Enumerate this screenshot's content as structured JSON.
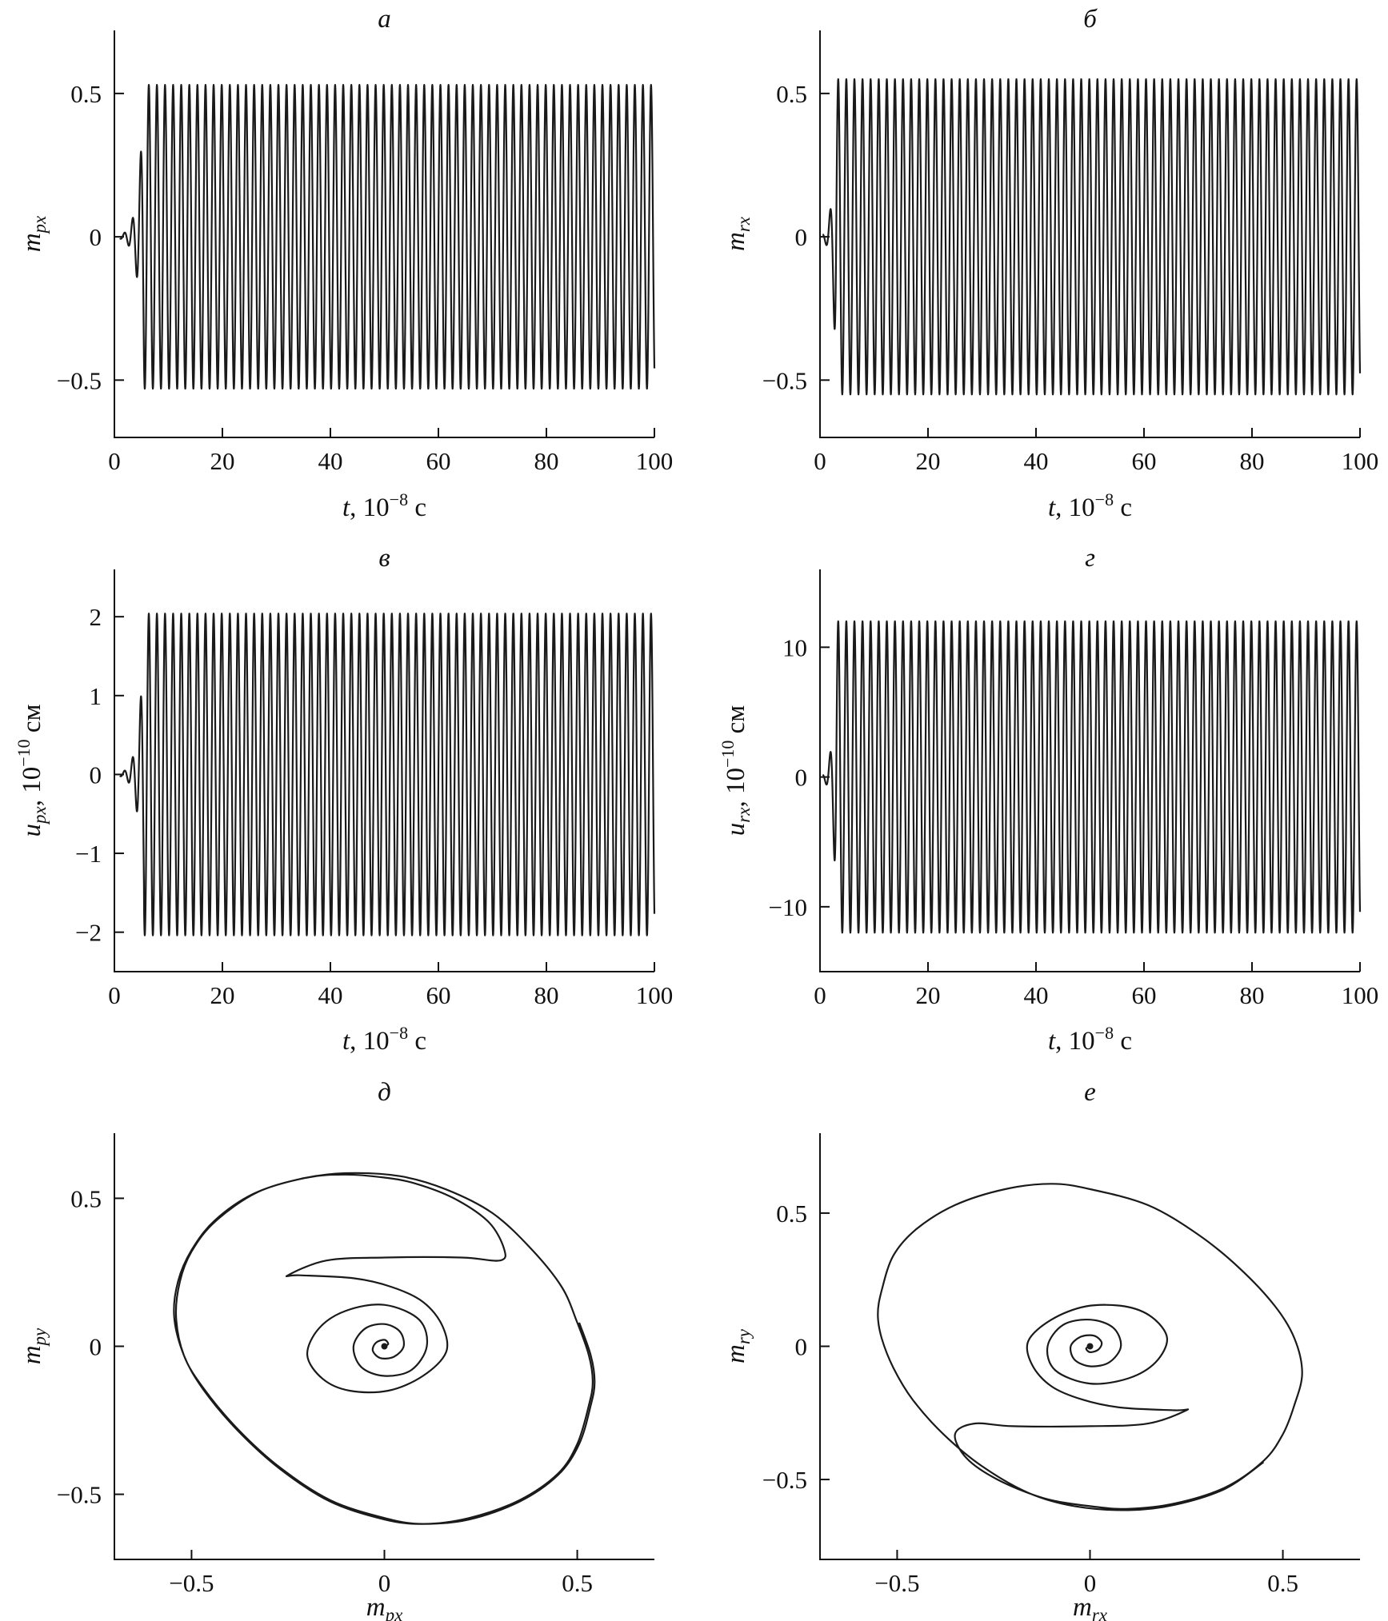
{
  "chart_data": [
    {
      "panel": "а",
      "type": "line",
      "title": "а",
      "xlabel_main": "t",
      "xlabel_rest": ", 10",
      "xlabel_exp": "−8",
      "xlabel_unit": " с",
      "ylabel_main": "m",
      "ylabel_sub": "px",
      "ylabel_rest": "",
      "ylabel_exp": "",
      "ylabel_unit": "",
      "xlim": [
        0,
        100
      ],
      "ylim": [
        -0.7,
        0.72
      ],
      "xticks": [
        0,
        20,
        40,
        60,
        80,
        100
      ],
      "xtick_labels": [
        "0",
        "20",
        "40",
        "60",
        "80",
        "100"
      ],
      "yticks": [
        0.5,
        0,
        -0.5
      ],
      "ytick_labels": [
        "0.5",
        "0",
        "−0.5"
      ],
      "series": [
        {
          "kind": "oscillation",
          "amplitude": 0.53,
          "period": 1.5,
          "onset": 5.5,
          "initial_amplitude": 0.006,
          "growth_rate": 1.0,
          "x_start": 1.0,
          "x_end": 100
        }
      ]
    },
    {
      "panel": "б",
      "type": "line",
      "title": "б",
      "xlabel_main": "t",
      "xlabel_rest": ", 10",
      "xlabel_exp": "−8",
      "xlabel_unit": " с",
      "ylabel_main": "m",
      "ylabel_sub": "rx",
      "ylabel_rest": "",
      "ylabel_exp": "",
      "ylabel_unit": "",
      "xlim": [
        0,
        100
      ],
      "ylim": [
        -0.7,
        0.72
      ],
      "xticks": [
        0,
        20,
        40,
        60,
        80,
        100
      ],
      "xtick_labels": [
        "0",
        "20",
        "40",
        "60",
        "80",
        "100"
      ],
      "yticks": [
        0.5,
        0,
        -0.5
      ],
      "ytick_labels": [
        "0.5",
        "0",
        "−0.5"
      ],
      "series": [
        {
          "kind": "oscillation",
          "amplitude": 0.55,
          "period": 1.5,
          "onset": 3.5,
          "initial_amplitude": 0.01,
          "growth_rate": 1.6,
          "x_start": 0.5,
          "x_end": 100
        }
      ]
    },
    {
      "panel": "в",
      "type": "line",
      "title": "в",
      "xlabel_main": "t",
      "xlabel_rest": ", 10",
      "xlabel_exp": "−8",
      "xlabel_unit": " с",
      "ylabel_main": "u",
      "ylabel_sub": "px",
      "ylabel_rest": ", 10",
      "ylabel_exp": "−10",
      "ylabel_unit": " см",
      "xlim": [
        0,
        100
      ],
      "ylim": [
        -2.5,
        2.6
      ],
      "xticks": [
        0,
        20,
        40,
        60,
        80,
        100
      ],
      "xtick_labels": [
        "0",
        "20",
        "40",
        "60",
        "80",
        "100"
      ],
      "yticks": [
        2,
        1,
        0,
        -1,
        -2
      ],
      "ytick_labels": [
        "2",
        "1",
        "0",
        "−1",
        "−2"
      ],
      "series": [
        {
          "kind": "oscillation",
          "amplitude": 2.04,
          "period": 1.5,
          "onset": 5.5,
          "initial_amplitude": 0.02,
          "growth_rate": 1.0,
          "x_start": 1.0,
          "x_end": 100
        }
      ]
    },
    {
      "panel": "г",
      "type": "line",
      "title": "г",
      "xlabel_main": "t",
      "xlabel_rest": ", 10",
      "xlabel_exp": "−8",
      "xlabel_unit": " с",
      "ylabel_main": "u",
      "ylabel_sub": "rx",
      "ylabel_rest": ", 10",
      "ylabel_exp": "−10",
      "ylabel_unit": " см",
      "xlim": [
        0,
        100
      ],
      "ylim": [
        -15,
        16
      ],
      "xticks": [
        0,
        20,
        40,
        60,
        80,
        100
      ],
      "xtick_labels": [
        "0",
        "20",
        "40",
        "60",
        "80",
        "100"
      ],
      "yticks": [
        10,
        0,
        -10
      ],
      "ytick_labels": [
        "10",
        "0",
        "−10"
      ],
      "series": [
        {
          "kind": "oscillation",
          "amplitude": 12,
          "period": 1.5,
          "onset": 3.5,
          "initial_amplitude": 0.2,
          "growth_rate": 1.6,
          "x_start": 0.5,
          "x_end": 100
        }
      ]
    },
    {
      "panel": "д",
      "type": "line",
      "title": "д",
      "xlabel_main": "m",
      "xlabel_sub": "px",
      "ylabel_main": "m",
      "ylabel_sub": "py",
      "ylabel_rest": "",
      "ylabel_exp": "",
      "ylabel_unit": "",
      "xlim": [
        -0.7,
        0.7
      ],
      "ylim": [
        -0.72,
        0.72
      ],
      "xticks": [
        -0.5,
        0,
        0.5
      ],
      "xtick_labels": [
        "−0.5",
        "0",
        "0.5"
      ],
      "yticks": [
        0.5,
        0,
        -0.5
      ],
      "ytick_labels": [
        "0.5",
        "0",
        "−0.5"
      ],
      "series": [
        {
          "name": "phase trajectory",
          "points": [
            [
              0,
              0
            ],
            [
              0.01,
              0.008
            ],
            [
              0.0,
              0.022
            ],
            [
              -0.022,
              0.012
            ],
            [
              -0.03,
              -0.015
            ],
            [
              -0.01,
              -0.04
            ],
            [
              0.025,
              -0.035
            ],
            [
              0.05,
              0.0
            ],
            [
              0.04,
              0.05
            ],
            [
              0.0,
              0.075
            ],
            [
              -0.05,
              0.06
            ],
            [
              -0.08,
              0.0
            ],
            [
              -0.06,
              -0.07
            ],
            [
              0.0,
              -0.1
            ],
            [
              0.07,
              -0.08
            ],
            [
              0.11,
              0.0
            ],
            [
              0.09,
              0.09
            ],
            [
              0.0,
              0.14
            ],
            [
              -0.1,
              0.12
            ],
            [
              -0.17,
              0.06
            ],
            [
              -0.2,
              -0.03
            ],
            [
              -0.16,
              -0.11
            ],
            [
              -0.09,
              -0.15
            ],
            [
              0.01,
              -0.15
            ],
            [
              0.1,
              -0.1
            ],
            [
              0.16,
              -0.02
            ],
            [
              0.15,
              0.07
            ],
            [
              0.1,
              0.15
            ],
            [
              0.02,
              0.2
            ],
            [
              -0.08,
              0.23
            ],
            [
              -0.22,
              0.24
            ],
            [
              -0.25,
              0.24
            ],
            [
              -0.15,
              0.29
            ],
            [
              0.0,
              0.3
            ],
            [
              0.2,
              0.3
            ],
            [
              0.3,
              0.29
            ],
            [
              0.31,
              0.33
            ],
            [
              0.27,
              0.42
            ],
            [
              0.18,
              0.5
            ],
            [
              0.08,
              0.55
            ],
            [
              0.0,
              0.57
            ],
            [
              -0.1,
              0.58
            ],
            [
              -0.2,
              0.57
            ],
            [
              -0.33,
              0.52
            ],
            [
              -0.44,
              0.42
            ],
            [
              -0.5,
              0.32
            ],
            [
              -0.53,
              0.22
            ],
            [
              -0.54,
              0.1
            ],
            [
              -0.52,
              -0.03
            ],
            [
              -0.47,
              -0.14
            ],
            [
              -0.38,
              -0.28
            ],
            [
              -0.27,
              -0.41
            ],
            [
              -0.14,
              -0.52
            ],
            [
              0.0,
              -0.58
            ],
            [
              0.1,
              -0.6
            ],
            [
              0.22,
              -0.58
            ],
            [
              0.35,
              -0.52
            ],
            [
              0.45,
              -0.43
            ],
            [
              0.5,
              -0.33
            ],
            [
              0.53,
              -0.2
            ],
            [
              0.54,
              -0.12
            ],
            [
              0.53,
              -0.03
            ],
            [
              0.5,
              0.08
            ],
            [
              0.46,
              0.2
            ],
            [
              0.38,
              0.33
            ],
            [
              0.28,
              0.45
            ],
            [
              0.16,
              0.53
            ],
            [
              0.04,
              0.575
            ],
            [
              -0.1,
              0.585
            ],
            [
              -0.22,
              0.565
            ],
            [
              -0.34,
              0.515
            ],
            [
              -0.44,
              0.425
            ],
            [
              -0.5,
              0.325
            ],
            [
              -0.535,
              0.22
            ],
            [
              -0.545,
              0.1
            ],
            [
              -0.52,
              -0.03
            ],
            [
              -0.47,
              -0.145
            ],
            [
              -0.38,
              -0.285
            ],
            [
              -0.27,
              -0.415
            ],
            [
              -0.14,
              -0.525
            ],
            [
              0.0,
              -0.585
            ],
            [
              0.1,
              -0.6
            ],
            [
              0.22,
              -0.585
            ],
            [
              0.35,
              -0.525
            ],
            [
              0.45,
              -0.435
            ],
            [
              0.505,
              -0.33
            ],
            [
              0.535,
              -0.2
            ],
            [
              0.545,
              -0.12
            ],
            [
              0.535,
              -0.03
            ],
            [
              0.505,
              0.08
            ]
          ]
        }
      ]
    },
    {
      "panel": "е",
      "type": "line",
      "title": "е",
      "xlabel_main": "m",
      "xlabel_sub": "rx",
      "ylabel_main": "m",
      "ylabel_sub": "ry",
      "ylabel_rest": "",
      "ylabel_exp": "",
      "ylabel_unit": "",
      "xlim": [
        -0.7,
        0.7
      ],
      "ylim": [
        -0.8,
        0.8
      ],
      "xticks": [
        -0.5,
        0,
        0.5
      ],
      "xtick_labels": [
        "−0.5",
        "0",
        "0.5"
      ],
      "yticks": [
        0.5,
        0,
        -0.5
      ],
      "ytick_labels": [
        "0.5",
        "0",
        "−0.5"
      ],
      "series": [
        {
          "name": "phase trajectory",
          "points": [
            [
              0,
              0
            ],
            [
              -0.01,
              -0.008
            ],
            [
              0.0,
              -0.022
            ],
            [
              0.022,
              -0.012
            ],
            [
              0.03,
              0.015
            ],
            [
              0.01,
              0.04
            ],
            [
              -0.025,
              0.035
            ],
            [
              -0.05,
              0.0
            ],
            [
              -0.04,
              -0.05
            ],
            [
              0.0,
              -0.075
            ],
            [
              0.05,
              -0.06
            ],
            [
              0.08,
              0.0
            ],
            [
              0.06,
              0.07
            ],
            [
              0.0,
              0.1
            ],
            [
              -0.07,
              0.08
            ],
            [
              -0.11,
              0.0
            ],
            [
              -0.09,
              -0.09
            ],
            [
              0.0,
              -0.14
            ],
            [
              0.1,
              -0.12
            ],
            [
              0.17,
              -0.06
            ],
            [
              0.2,
              0.03
            ],
            [
              0.16,
              0.11
            ],
            [
              0.09,
              0.15
            ],
            [
              -0.01,
              0.15
            ],
            [
              -0.1,
              0.1
            ],
            [
              -0.16,
              0.02
            ],
            [
              -0.15,
              -0.07
            ],
            [
              -0.1,
              -0.15
            ],
            [
              -0.02,
              -0.2
            ],
            [
              0.08,
              -0.23
            ],
            [
              0.22,
              -0.24
            ],
            [
              0.25,
              -0.24
            ],
            [
              0.15,
              -0.29
            ],
            [
              0.0,
              -0.3
            ],
            [
              -0.2,
              -0.3
            ],
            [
              -0.3,
              -0.29
            ],
            [
              -0.35,
              -0.33
            ],
            [
              -0.32,
              -0.42
            ],
            [
              -0.24,
              -0.5
            ],
            [
              -0.12,
              -0.57
            ],
            [
              0.0,
              -0.6
            ],
            [
              0.1,
              -0.61
            ],
            [
              0.22,
              -0.59
            ],
            [
              0.35,
              -0.53
            ],
            [
              0.45,
              -0.43
            ],
            [
              0.5,
              -0.33
            ],
            [
              0.53,
              -0.22
            ],
            [
              0.55,
              -0.1
            ],
            [
              0.53,
              0.03
            ],
            [
              0.48,
              0.15
            ],
            [
              0.39,
              0.29
            ],
            [
              0.28,
              0.42
            ],
            [
              0.15,
              0.53
            ],
            [
              0.0,
              0.59
            ],
            [
              -0.1,
              0.61
            ],
            [
              -0.22,
              0.59
            ],
            [
              -0.35,
              0.53
            ],
            [
              -0.45,
              0.44
            ],
            [
              -0.51,
              0.34
            ],
            [
              -0.54,
              0.21
            ],
            [
              -0.55,
              0.12
            ],
            [
              -0.54,
              0.03
            ],
            [
              -0.51,
              -0.08
            ],
            [
              -0.46,
              -0.2
            ],
            [
              -0.38,
              -0.33
            ],
            [
              -0.28,
              -0.45
            ],
            [
              -0.16,
              -0.55
            ],
            [
              -0.04,
              -0.6
            ],
            [
              0.1,
              -0.615
            ],
            [
              0.22,
              -0.595
            ],
            [
              0.35,
              -0.535
            ],
            [
              0.45,
              -0.435
            ]
          ]
        }
      ]
    }
  ]
}
